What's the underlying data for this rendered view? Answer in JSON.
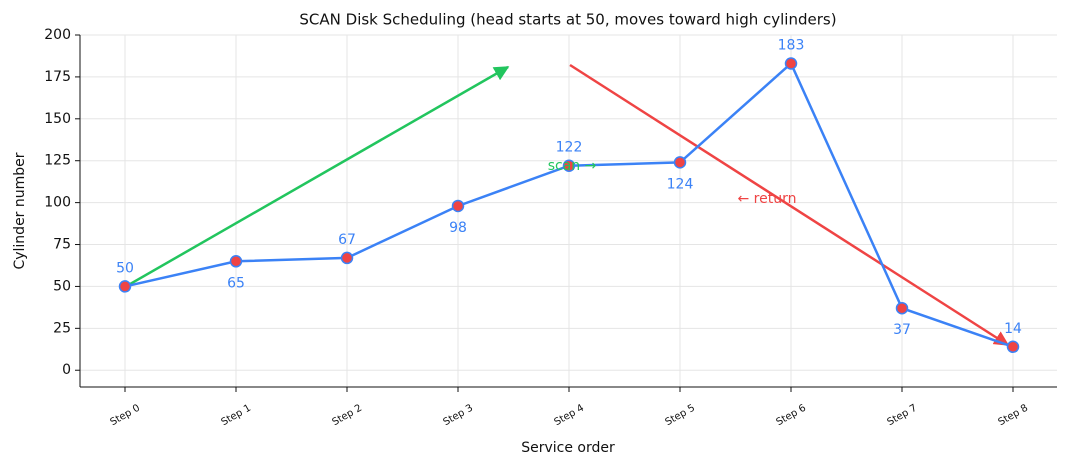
{
  "chart_data": {
    "type": "line",
    "title": "SCAN Disk Scheduling (head starts at 50, moves toward high cylinders)",
    "x_label": "Service order",
    "y_label": "Cylinder number",
    "categories": [
      "Step 0",
      "Step 1",
      "Step 2",
      "Step 3",
      "Step 4",
      "Step 5",
      "Step 6",
      "Step 7",
      "Step 8"
    ],
    "values": [
      50,
      65,
      67,
      98,
      122,
      124,
      183,
      37,
      14
    ],
    "color": "#3b82f6",
    "marker_color": "#ef4444",
    "ylim": [
      -10,
      200
    ],
    "yticks": [
      0,
      25,
      50,
      75,
      100,
      125,
      150,
      175,
      200
    ],
    "grid": true,
    "annotations": [
      {
        "text": "scan →",
        "color": "#22c55e"
      },
      {
        "text": "← return",
        "color": "#ef4444"
      }
    ]
  }
}
